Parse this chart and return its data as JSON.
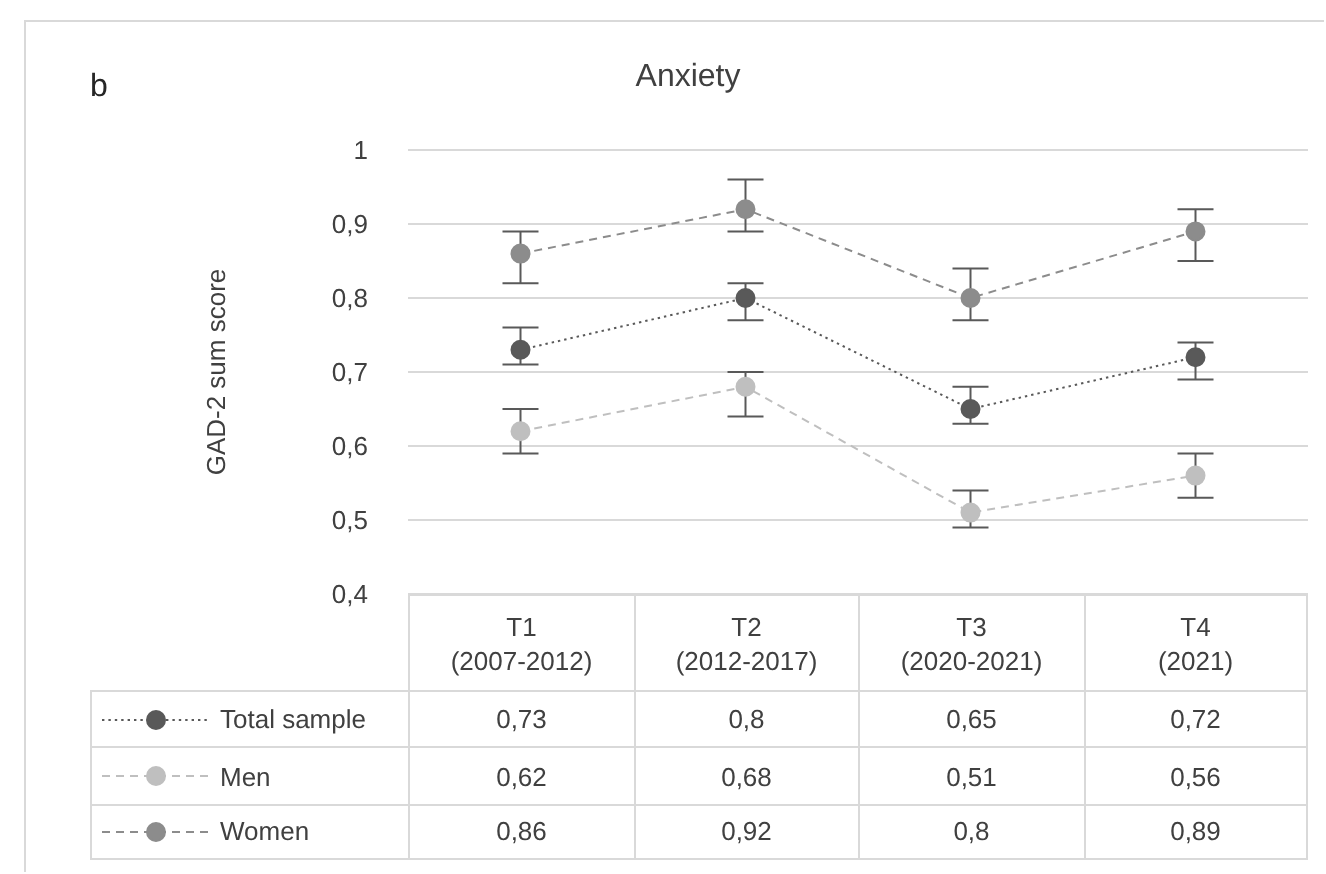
{
  "chart_data": {
    "type": "line",
    "title": "Anxiety",
    "ylabel": "GAD-2 sum score",
    "annotations": [
      "b"
    ],
    "categories": [
      "T1\n(2007-2012)",
      "T2\n(2012-2017)",
      "T3\n(2020-2021)",
      "T4\n(2021)"
    ],
    "ylim": [
      0.4,
      1
    ],
    "yticks": [
      {
        "value": 0.4,
        "label": "0,4"
      },
      {
        "value": 0.5,
        "label": "0,5"
      },
      {
        "value": 0.6,
        "label": "0,6"
      },
      {
        "value": 0.7,
        "label": "0,7"
      },
      {
        "value": 0.8,
        "label": "0,8"
      },
      {
        "value": 0.9,
        "label": "0,9"
      },
      1
    ],
    "grid": "y",
    "legend": "bottom",
    "marker": "circle",
    "series": [
      {
        "name": "Total sample",
        "color": "#595959",
        "line_style": "dotted",
        "values": [
          0.73,
          0.8,
          0.65,
          0.72
        ],
        "errors": [
          [
            0.71,
            0.76
          ],
          [
            0.77,
            0.82
          ],
          [
            0.63,
            0.68
          ],
          [
            0.69,
            0.74
          ]
        ],
        "value_labels": [
          "0,73",
          "0,8",
          "0,65",
          "0,72"
        ]
      },
      {
        "name": "Men",
        "color": "#bfbfbf",
        "line_style": "dashed",
        "values": [
          0.62,
          0.68,
          0.51,
          0.56
        ],
        "errors": [
          [
            0.59,
            0.65
          ],
          [
            0.64,
            0.7
          ],
          [
            0.49,
            0.54
          ],
          [
            0.53,
            0.59
          ]
        ],
        "value_labels": [
          "0,62",
          "0,68",
          "0,51",
          "0,56"
        ]
      },
      {
        "name": "Women",
        "color": "#8c8c8c",
        "line_style": "dashed",
        "values": [
          0.86,
          0.92,
          0.8,
          0.89
        ],
        "errors": [
          [
            0.82,
            0.89
          ],
          [
            0.89,
            0.96
          ],
          [
            0.77,
            0.84
          ],
          [
            0.85,
            0.92
          ]
        ],
        "value_labels": [
          "0,86",
          "0,92",
          "0,8",
          "0,89"
        ]
      }
    ]
  }
}
